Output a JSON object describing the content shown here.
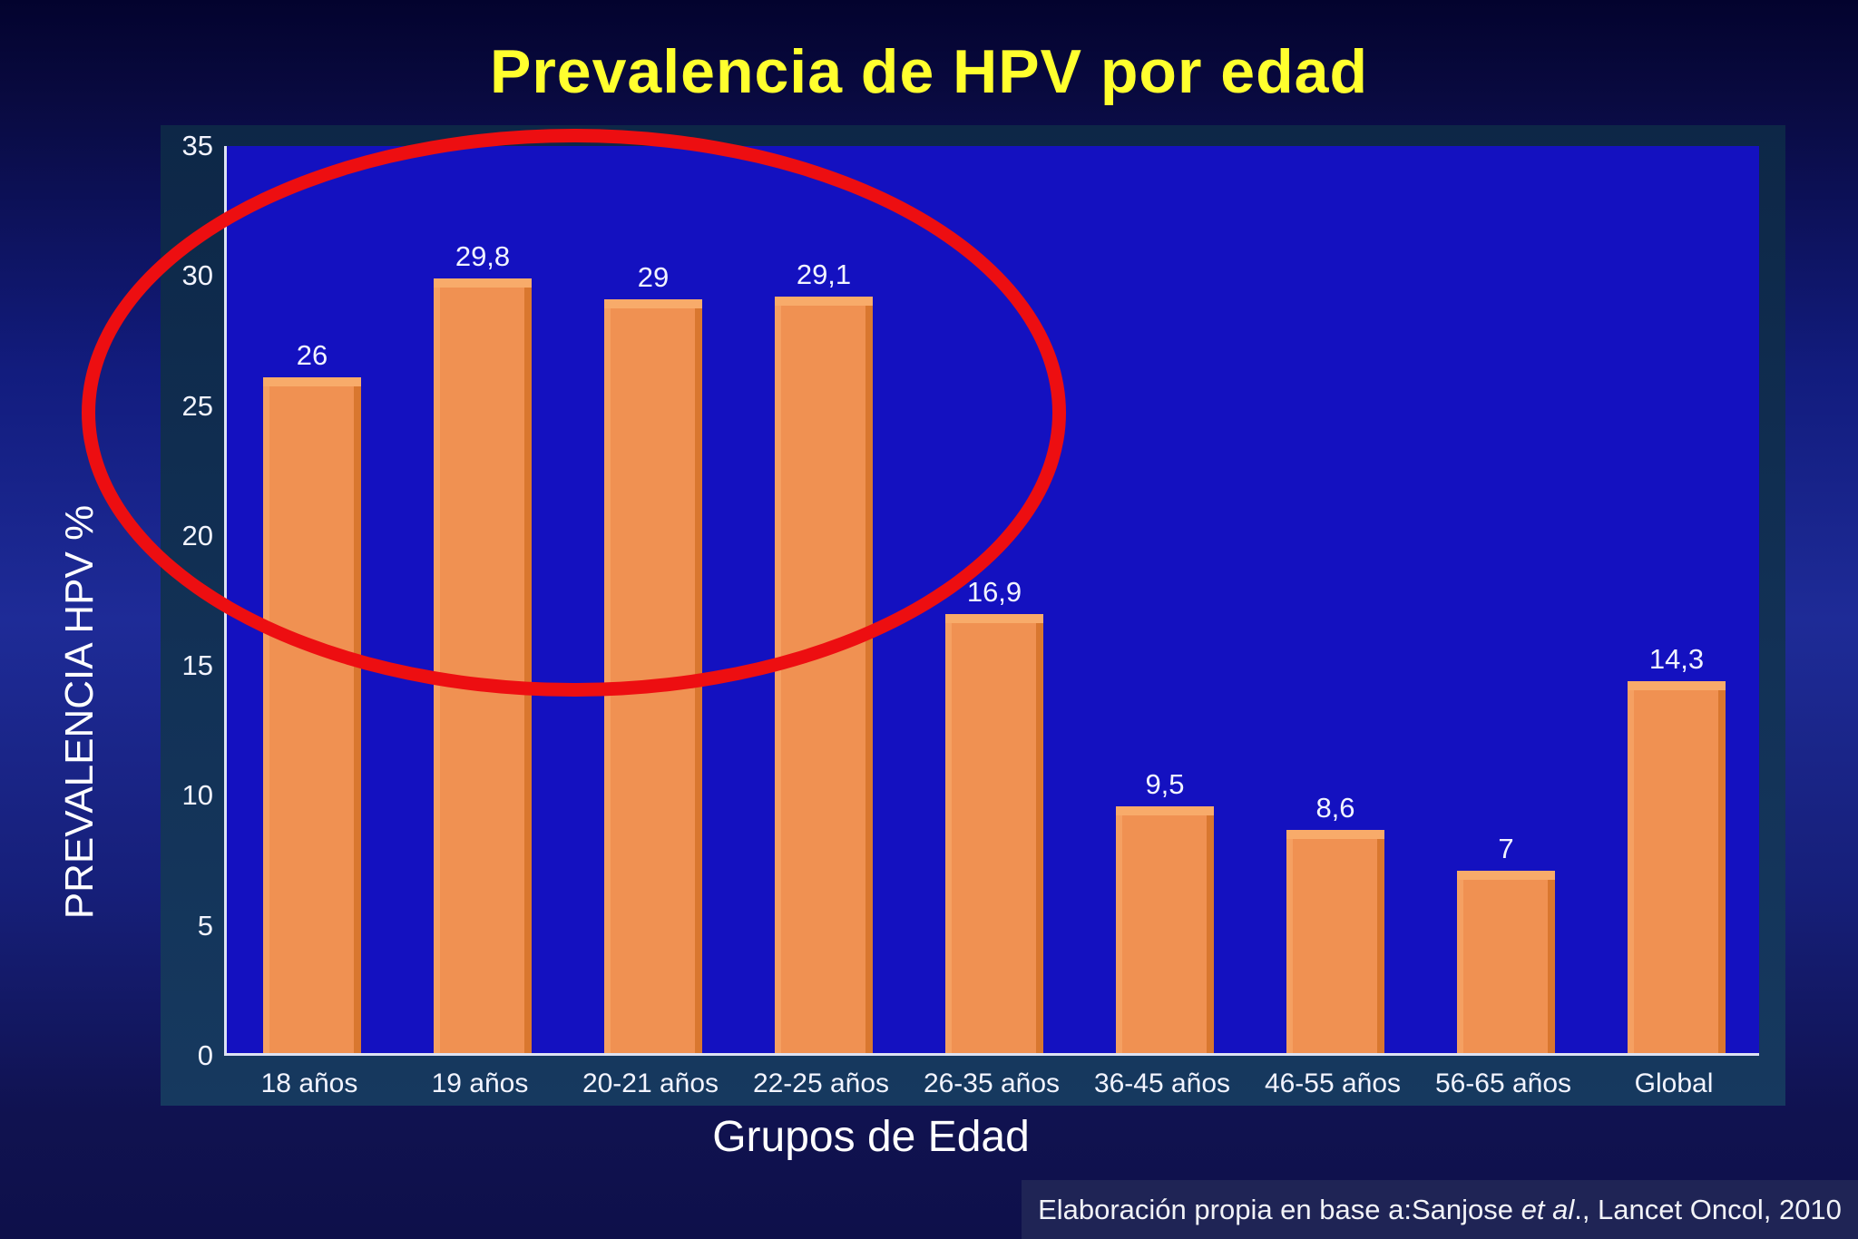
{
  "slide": {
    "title": "Prevalencia de HPV por edad",
    "citation": {
      "prefix": "Elaboración propia en base a:Sanjose ",
      "italic": "et al",
      "suffix": "., Lancet Oncol, 2010"
    }
  },
  "chart_data": {
    "type": "bar",
    "title": "Prevalencia de HPV por edad",
    "categories": [
      "18 años",
      "19 años",
      "20-21 años",
      "22-25 años",
      "26-35 años",
      "36-45 años",
      "46-55 años",
      "56-65 años",
      "Global"
    ],
    "values": [
      26,
      29.8,
      29,
      29.1,
      16.9,
      9.5,
      8.6,
      7,
      14.3
    ],
    "value_labels": [
      "26",
      "29,8",
      "29",
      "29,1",
      "16,9",
      "9,5",
      "8,6",
      "7",
      "14,3"
    ],
    "xlabel": "Grupos de Edad",
    "ylabel": "PREVALENCIA HPV %",
    "ylim": [
      0,
      35
    ],
    "yticks": [
      0,
      5,
      10,
      15,
      20,
      25,
      30,
      35
    ],
    "grid": false,
    "legend": false,
    "annotation": "Red ellipse highlighting the first four age groups (18 to 25 años)",
    "colors": {
      "title_text": "#ffff2e",
      "bar": "#f09152",
      "bar_highlight": "#f8ab6a",
      "bar_light_edge": "#f5a062",
      "bar_shadow": "#d9772f",
      "plot_background": "#1411c0",
      "panel_background": "#123156",
      "axis_line": "#dde2f2",
      "label_text": "#f2f4ff",
      "annotation_ellipse": "#ed0e11"
    }
  }
}
